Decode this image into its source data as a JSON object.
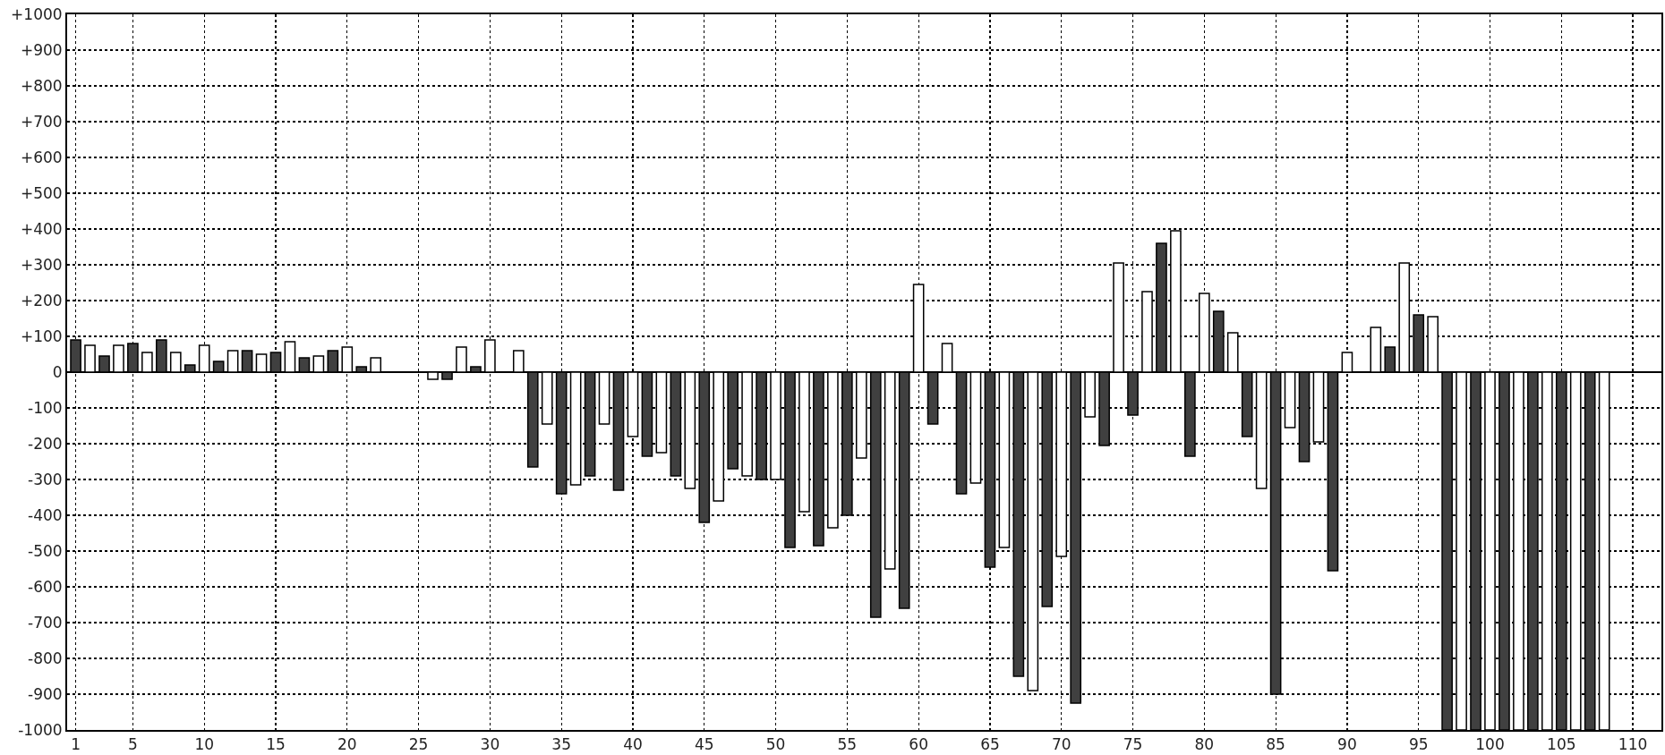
{
  "chart_data": {
    "type": "bar",
    "x": [
      1,
      2,
      3,
      4,
      5,
      6,
      7,
      8,
      9,
      10,
      11,
      12,
      13,
      14,
      15,
      16,
      17,
      18,
      19,
      20,
      21,
      22,
      23,
      24,
      25,
      26,
      27,
      28,
      29,
      30,
      31,
      32,
      33,
      34,
      35,
      36,
      37,
      38,
      39,
      40,
      41,
      42,
      43,
      44,
      45,
      46,
      47,
      48,
      49,
      50,
      51,
      52,
      53,
      54,
      55,
      56,
      57,
      58,
      59,
      60,
      61,
      62,
      63,
      64,
      65,
      66,
      67,
      68,
      69,
      70,
      71,
      72,
      73,
      74,
      75,
      76,
      77,
      78,
      79,
      80,
      81,
      82,
      83,
      84,
      85,
      86,
      87,
      88,
      89,
      90,
      91,
      92,
      93,
      94,
      95,
      96,
      97,
      98,
      99,
      100,
      101,
      102,
      103,
      104,
      105,
      106,
      107,
      108
    ],
    "values": [
      90,
      75,
      45,
      75,
      80,
      55,
      90,
      55,
      20,
      75,
      30,
      60,
      60,
      50,
      55,
      85,
      40,
      45,
      60,
      70,
      15,
      40,
      null,
      null,
      null,
      -20,
      -20,
      70,
      15,
      90,
      null,
      60,
      -265,
      -145,
      -340,
      -315,
      -290,
      -145,
      -330,
      -180,
      -235,
      -225,
      -290,
      -325,
      -420,
      -360,
      -270,
      -290,
      -300,
      -300,
      -490,
      -390,
      -485,
      -435,
      -400,
      -240,
      -685,
      -550,
      -660,
      245,
      -145,
      80,
      -340,
      -310,
      -545,
      -490,
      -850,
      -890,
      -655,
      -515,
      -925,
      -125,
      -205,
      305,
      -120,
      225,
      360,
      395,
      -235,
      220,
      170,
      110,
      -180,
      -325,
      -900,
      -155,
      -250,
      -195,
      -555,
      55,
      null,
      125,
      70,
      305,
      160,
      155,
      -1000,
      -1000,
      -1000,
      -1000,
      -1000,
      -1000,
      -1000,
      -1000,
      -1000,
      -1000,
      -1000,
      -1000
    ],
    "colors": [
      "#404040",
      "#ffffff",
      "#404040",
      "#ffffff",
      "#404040",
      "#ffffff",
      "#404040",
      "#ffffff",
      "#404040",
      "#ffffff",
      "#404040",
      "#ffffff",
      "#404040",
      "#ffffff",
      "#404040",
      "#ffffff",
      "#404040",
      "#ffffff",
      "#404040",
      "#ffffff",
      "#404040",
      "#ffffff",
      "#404040",
      "#ffffff",
      "#404040",
      "#ffffff",
      "#404040",
      "#ffffff",
      "#404040",
      "#ffffff",
      "#404040",
      "#ffffff",
      "#404040",
      "#ffffff",
      "#404040",
      "#ffffff",
      "#404040",
      "#ffffff",
      "#404040",
      "#ffffff",
      "#404040",
      "#ffffff",
      "#404040",
      "#ffffff",
      "#404040",
      "#ffffff",
      "#404040",
      "#ffffff",
      "#404040",
      "#ffffff",
      "#404040",
      "#ffffff",
      "#404040",
      "#ffffff",
      "#404040",
      "#ffffff",
      "#404040",
      "#ffffff",
      "#404040",
      "#ffffff",
      "#404040",
      "#ffffff",
      "#404040",
      "#ffffff",
      "#404040",
      "#ffffff",
      "#404040",
      "#ffffff",
      "#404040",
      "#ffffff",
      "#404040",
      "#ffffff",
      "#404040",
      "#ffffff",
      "#404040",
      "#ffffff",
      "#404040",
      "#ffffff",
      "#404040",
      "#ffffff",
      "#404040",
      "#ffffff",
      "#404040",
      "#ffffff",
      "#404040",
      "#ffffff",
      "#404040",
      "#ffffff",
      "#404040",
      "#ffffff",
      "#404040",
      "#ffffff",
      "#404040",
      "#ffffff",
      "#404040",
      "#ffffff",
      "#404040",
      "#ffffff",
      "#404040",
      "#ffffff",
      "#404040",
      "#ffffff",
      "#404040",
      "#ffffff",
      "#404040",
      "#ffffff",
      "#404040",
      "#ffffff"
    ],
    "xlim": [
      0.4,
      112
    ],
    "xticks": [
      1,
      5,
      10,
      15,
      20,
      25,
      30,
      35,
      40,
      45,
      50,
      55,
      60,
      65,
      70,
      75,
      80,
      85,
      90,
      95,
      100,
      105,
      110
    ],
    "ylim": [
      -1000,
      1000
    ],
    "yticks": [
      {
        "value": -1000,
        "label": "-1000"
      },
      {
        "value": -900,
        "label": "-900"
      },
      {
        "value": -800,
        "label": "-800"
      },
      {
        "value": -700,
        "label": "-700"
      },
      {
        "value": -600,
        "label": "-600"
      },
      {
        "value": -500,
        "label": "-500"
      },
      {
        "value": -400,
        "label": "-400"
      },
      {
        "value": -300,
        "label": "-300"
      },
      {
        "value": -200,
        "label": "-200"
      },
      {
        "value": -100,
        "label": "-100"
      },
      0,
      {
        "value": 100,
        "label": "+100"
      },
      {
        "value": 200,
        "label": "+200"
      },
      {
        "value": 300,
        "label": "+300"
      },
      {
        "value": 400,
        "label": "+400"
      },
      {
        "value": 500,
        "label": "+500"
      },
      {
        "value": 600,
        "label": "+600"
      },
      {
        "value": 700,
        "label": "+700"
      },
      {
        "value": 800,
        "label": "+800"
      },
      {
        "value": 900,
        "label": "+900"
      },
      {
        "value": 1000,
        "label": "+1000"
      }
    ],
    "grid": true
  }
}
